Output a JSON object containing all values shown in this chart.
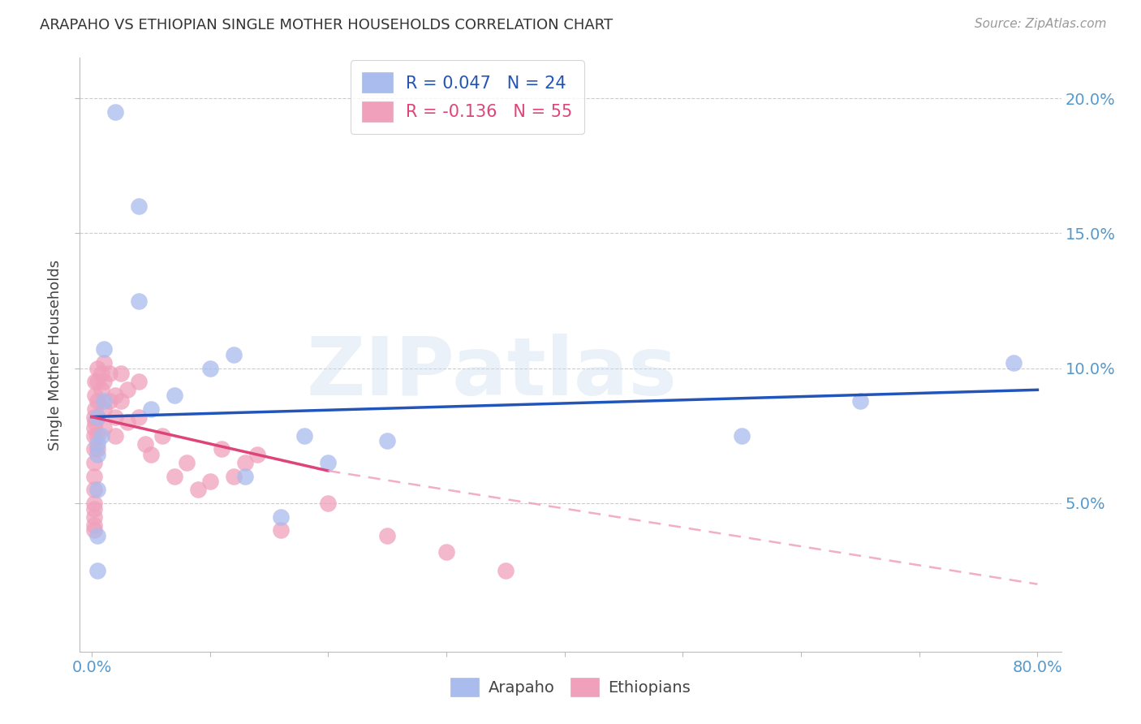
{
  "title": "ARAPAHO VS ETHIOPIAN SINGLE MOTHER HOUSEHOLDS CORRELATION CHART",
  "source": "Source: ZipAtlas.com",
  "tick_color": "#5599cc",
  "ylabel": "Single Mother Households",
  "xlim": [
    -0.01,
    0.82
  ],
  "ylim": [
    -0.005,
    0.215
  ],
  "plot_xlim": [
    0.0,
    0.8
  ],
  "ytick_positions": [
    0.05,
    0.1,
    0.15,
    0.2
  ],
  "xtick_show": [
    0.0,
    0.8
  ],
  "arapaho_color": "#aabbee",
  "ethiopian_color": "#f0a0bb",
  "trend_arapaho_color": "#2255bb",
  "trend_ethiopian_solid_color": "#dd4477",
  "trend_ethiopian_dash_color": "#f0a0bb",
  "legend_label_arapaho": "R = 0.047   N = 24",
  "legend_label_ethiopian": "R = -0.136   N = 55",
  "legend_text_color": "#2255bb",
  "legend_text_color2": "#dd4477",
  "watermark": "ZIPatlas",
  "arapaho_x": [
    0.005,
    0.008,
    0.01,
    0.01,
    0.02,
    0.04,
    0.04,
    0.05,
    0.07,
    0.1,
    0.12,
    0.13,
    0.16,
    0.18,
    0.2,
    0.25,
    0.55,
    0.65,
    0.78,
    0.005,
    0.005,
    0.005,
    0.005,
    0.005
  ],
  "arapaho_y": [
    0.082,
    0.075,
    0.107,
    0.088,
    0.195,
    0.125,
    0.16,
    0.085,
    0.09,
    0.1,
    0.105,
    0.06,
    0.045,
    0.075,
    0.065,
    0.073,
    0.075,
    0.088,
    0.102,
    0.072,
    0.068,
    0.055,
    0.038,
    0.025
  ],
  "ethiopian_x": [
    0.002,
    0.002,
    0.002,
    0.002,
    0.002,
    0.002,
    0.002,
    0.002,
    0.002,
    0.002,
    0.002,
    0.002,
    0.003,
    0.003,
    0.003,
    0.003,
    0.005,
    0.005,
    0.005,
    0.005,
    0.005,
    0.005,
    0.008,
    0.008,
    0.01,
    0.01,
    0.01,
    0.01,
    0.015,
    0.015,
    0.02,
    0.02,
    0.02,
    0.025,
    0.025,
    0.03,
    0.03,
    0.04,
    0.04,
    0.045,
    0.05,
    0.06,
    0.07,
    0.08,
    0.09,
    0.1,
    0.11,
    0.12,
    0.13,
    0.14,
    0.16,
    0.2,
    0.25,
    0.3,
    0.35
  ],
  "ethiopian_y": [
    0.082,
    0.078,
    0.075,
    0.07,
    0.065,
    0.06,
    0.055,
    0.05,
    0.048,
    0.045,
    0.042,
    0.04,
    0.095,
    0.09,
    0.085,
    0.08,
    0.1,
    0.095,
    0.088,
    0.082,
    0.075,
    0.07,
    0.098,
    0.092,
    0.102,
    0.095,
    0.085,
    0.078,
    0.098,
    0.088,
    0.09,
    0.082,
    0.075,
    0.098,
    0.088,
    0.092,
    0.08,
    0.095,
    0.082,
    0.072,
    0.068,
    0.075,
    0.06,
    0.065,
    0.055,
    0.058,
    0.07,
    0.06,
    0.065,
    0.068,
    0.04,
    0.05,
    0.038,
    0.032,
    0.025
  ],
  "trend_arapaho_x0": 0.0,
  "trend_arapaho_y0": 0.082,
  "trend_arapaho_x1": 0.8,
  "trend_arapaho_y1": 0.092,
  "trend_eth_solid_x0": 0.0,
  "trend_eth_solid_y0": 0.082,
  "trend_eth_solid_x1": 0.2,
  "trend_eth_solid_y1": 0.062,
  "trend_eth_dash_x0": 0.2,
  "trend_eth_dash_y0": 0.062,
  "trend_eth_dash_x1": 0.8,
  "trend_eth_dash_y1": 0.02
}
